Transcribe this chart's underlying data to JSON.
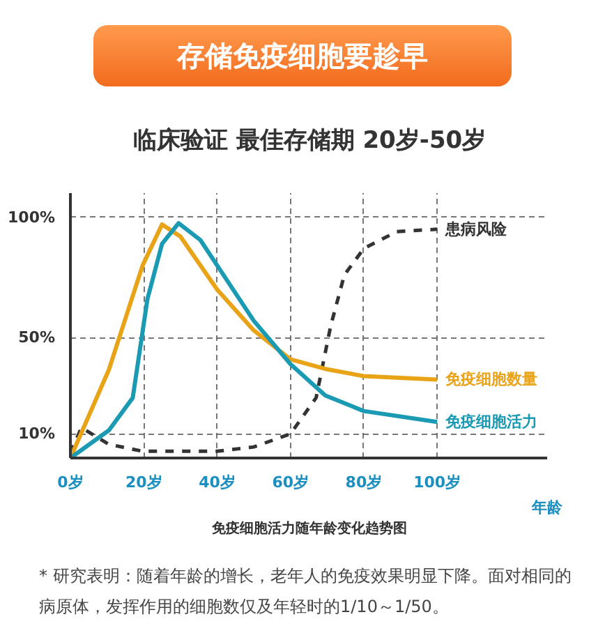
{
  "chart_data": {
    "type": "line",
    "title": "存储免疫细胞要趁早",
    "subtitle": "临床验证 最佳存储期 20岁-50岁",
    "xlabel": "年龄",
    "annotations": [
      "免疫细胞活力随年龄变化趋势图",
      "* 研究表明：随着年龄的增长，老年人的免疫效果明显下降。面对相同的病原体，发挥作用的细胞数仅及年轻时的1/10～1/50。"
    ],
    "xlim": [
      0,
      130
    ],
    "ylim": [
      0,
      110
    ],
    "xticks": [
      {
        "value": 0,
        "label": "0岁"
      },
      {
        "value": 20,
        "label": "20岁"
      },
      {
        "value": 40,
        "label": "40岁"
      },
      {
        "value": 60,
        "label": "60岁"
      },
      {
        "value": 80,
        "label": "80岁"
      },
      {
        "value": 100,
        "label": "100岁"
      }
    ],
    "yticks": [
      {
        "value": 10,
        "label": "10%"
      },
      {
        "value": 50,
        "label": "50%"
      },
      {
        "value": 100,
        "label": "100%"
      }
    ],
    "grid": true,
    "series": [
      {
        "name": "患病风险",
        "color": "#333333",
        "line_style": "dashed",
        "x": [
          0,
          3,
          10.5,
          19.7,
          40,
          50,
          60,
          67,
          71,
          74.7,
          80,
          89,
          100
        ],
        "values": [
          2,
          12.6,
          5.7,
          2.8,
          2.8,
          4.6,
          10,
          25,
          55,
          76,
          87,
          94,
          95
        ]
      },
      {
        "name": "免疫细胞数量",
        "color": "#e8a317",
        "line_style": "solid",
        "x": [
          0,
          10.5,
          19.7,
          25,
          30,
          40,
          50,
          60,
          69.5,
          80,
          100
        ],
        "values": [
          0,
          36.7,
          80,
          97,
          92,
          70,
          53,
          41,
          37,
          34,
          32.6
        ]
      },
      {
        "name": "免疫细胞活力",
        "color": "#1a9bb3",
        "line_style": "solid",
        "x": [
          0,
          10.5,
          17,
          21,
          25,
          29.5,
          35.4,
          40,
          50,
          60,
          69.5,
          80,
          100
        ],
        "values": [
          0,
          11.5,
          25,
          66,
          89,
          97.5,
          90.6,
          80,
          57,
          39,
          26,
          19.5,
          15
        ]
      }
    ]
  }
}
